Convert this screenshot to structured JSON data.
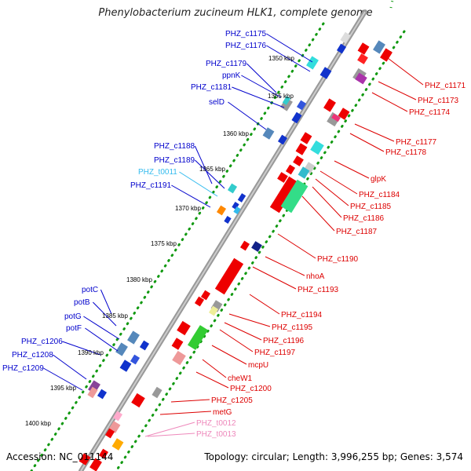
{
  "title": "Phenylobacterium zucineum HLK1, complete genome",
  "footer": {
    "accession": "Accession: NC_011144",
    "summary": "Topology: circular; Length: 3,996,255 bp; Genes: 3,574"
  },
  "colors": {
    "backbone": "#999999",
    "dots": "#119911",
    "label_blue": "#0000cc",
    "label_red": "#dd0000",
    "label_trna": "#33bbee",
    "label_pink": "#ee88bb"
  },
  "scale_ticks": [
    "1350 kbp",
    "1355 kbp",
    "1360 kbp",
    "1365 kbp",
    "1370 kbp",
    "1375 kbp",
    "1380 kbp",
    "1385 kbp",
    "1390 kbp",
    "1395 kbp",
    "1400 kbp"
  ],
  "left_labels": [
    {
      "text": "PHZ_c1175",
      "kind": "blue"
    },
    {
      "text": "PHZ_c1176",
      "kind": "blue"
    },
    {
      "text": "PHZ_c1179",
      "kind": "blue"
    },
    {
      "text": "ppnK",
      "kind": "blue"
    },
    {
      "text": "PHZ_c1181",
      "kind": "blue"
    },
    {
      "text": "selD",
      "kind": "blue"
    },
    {
      "text": "PHZ_c1188",
      "kind": "blue"
    },
    {
      "text": "PHZ_c1189",
      "kind": "blue"
    },
    {
      "text": "PHZ_t0011",
      "kind": "trna"
    },
    {
      "text": "PHZ_c1191",
      "kind": "blue"
    },
    {
      "text": "potC",
      "kind": "blue"
    },
    {
      "text": "potB",
      "kind": "blue"
    },
    {
      "text": "potG",
      "kind": "blue"
    },
    {
      "text": "potF",
      "kind": "blue"
    },
    {
      "text": "PHZ_c1206",
      "kind": "blue"
    },
    {
      "text": "PHZ_c1208",
      "kind": "blue"
    },
    {
      "text": "PHZ_c1209",
      "kind": "blue"
    }
  ],
  "right_labels": [
    {
      "text": "PHZ_c1171",
      "kind": "red"
    },
    {
      "text": "PHZ_c1173",
      "kind": "red"
    },
    {
      "text": "PHZ_c1174",
      "kind": "red"
    },
    {
      "text": "PHZ_c1177",
      "kind": "red"
    },
    {
      "text": "PHZ_c1178",
      "kind": "red"
    },
    {
      "text": "glpK",
      "kind": "red"
    },
    {
      "text": "PHZ_c1184",
      "kind": "red"
    },
    {
      "text": "PHZ_c1185",
      "kind": "red"
    },
    {
      "text": "PHZ_c1186",
      "kind": "red"
    },
    {
      "text": "PHZ_c1187",
      "kind": "red"
    },
    {
      "text": "PHZ_c1190",
      "kind": "red"
    },
    {
      "text": "nhoA",
      "kind": "red"
    },
    {
      "text": "PHZ_c1193",
      "kind": "red"
    },
    {
      "text": "PHZ_c1194",
      "kind": "red"
    },
    {
      "text": "PHZ_c1195",
      "kind": "red"
    },
    {
      "text": "PHZ_c1196",
      "kind": "red"
    },
    {
      "text": "PHZ_c1197",
      "kind": "red"
    },
    {
      "text": "mcpU",
      "kind": "red"
    },
    {
      "text": "cheW1",
      "kind": "red"
    },
    {
      "text": "PHZ_c1200",
      "kind": "red"
    },
    {
      "text": "PHZ_c1205",
      "kind": "red"
    },
    {
      "text": "metG",
      "kind": "red"
    },
    {
      "text": "PHZ_t0012",
      "kind": "pink"
    },
    {
      "text": "PHZ_t0013",
      "kind": "pink"
    }
  ]
}
